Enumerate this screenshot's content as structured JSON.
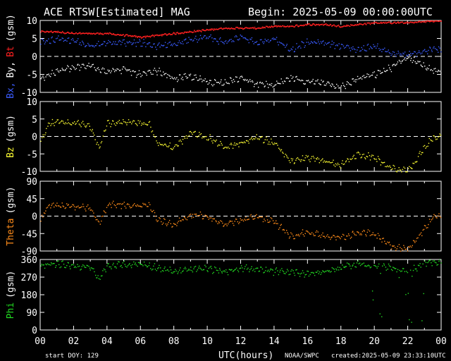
{
  "header": {
    "title": "ACE RTSW[Estimated] MAG",
    "begin": "Begin: 2025-05-09 00:00:00UTC"
  },
  "footer": {
    "start_doy": "start DOY: 129",
    "xlabel": "UTC(hours)",
    "source": "NOAA/SWPC",
    "created": "created:2025-05-09 23:33:10UTC"
  },
  "colors": {
    "bt": "#ff2020",
    "bx": "#ffffff",
    "by": "#3a5cff",
    "bz": "#ffff33",
    "theta": "#ff8c1a",
    "phi": "#22dd22"
  },
  "chart_data": [
    {
      "type": "scatter",
      "panel": "field",
      "ylabel_parts": [
        "Bx,",
        "By,",
        "Bt",
        "(gsm)"
      ],
      "ylim": [
        -10,
        10
      ],
      "yticks": [
        "10",
        "5",
        "0",
        "-5",
        "-10"
      ],
      "zero_line": true,
      "x": [
        0,
        1,
        2,
        3,
        4,
        5,
        6,
        7,
        8,
        9,
        10,
        11,
        12,
        13,
        14,
        15,
        16,
        17,
        18,
        19,
        20,
        21,
        22,
        23.5
      ],
      "series": [
        {
          "name": "Bt",
          "color_key": "bt",
          "values": [
            7,
            7,
            6.5,
            6.5,
            6.5,
            6,
            5.5,
            6,
            6.5,
            7,
            7.5,
            8,
            8,
            8,
            8.5,
            8.5,
            9,
            9,
            8.5,
            9,
            9.5,
            9.5,
            9.5,
            10
          ]
        },
        {
          "name": "By",
          "color_key": "by",
          "values": [
            4,
            5,
            4.5,
            3,
            4,
            4,
            4,
            3,
            3.5,
            5,
            5.5,
            4,
            5.5,
            4,
            5,
            2,
            4,
            4,
            3,
            2,
            3,
            1,
            0.5,
            2
          ]
        },
        {
          "name": "Bx",
          "color_key": "bx",
          "values": [
            -6,
            -4,
            -3,
            -2.5,
            -4,
            -3.5,
            -5,
            -4,
            -6,
            -5.5,
            -7,
            -7,
            -6,
            -7.5,
            -8,
            -6,
            -7,
            -7,
            -8.5,
            -6,
            -5,
            -3,
            0,
            -4
          ]
        }
      ]
    },
    {
      "type": "scatter",
      "panel": "bz",
      "ylabel_parts": [
        "Bz",
        "(gsm)"
      ],
      "ylim": [
        -10,
        10
      ],
      "yticks": [
        "10",
        "5",
        "0",
        "-5",
        "-10"
      ],
      "zero_line": true,
      "x": [
        0,
        0.5,
        1,
        2,
        3,
        3.5,
        4,
        5,
        6,
        6.5,
        7,
        8,
        9,
        10,
        11,
        12,
        13,
        14,
        15,
        16,
        17,
        18,
        19,
        20,
        21,
        22,
        23,
        23.5
      ],
      "series": [
        {
          "name": "Bz",
          "color_key": "bz",
          "values": [
            -2,
            4,
            4,
            4,
            3,
            -3,
            4,
            4,
            4,
            4,
            -2,
            -3,
            1,
            0,
            -3,
            -2,
            0,
            -2,
            -7,
            -6,
            -7,
            -8,
            -5,
            -6,
            -9,
            -10,
            -3,
            0
          ]
        }
      ]
    },
    {
      "type": "scatter",
      "panel": "theta",
      "ylabel_parts": [
        "Theta",
        "(gsm)"
      ],
      "ylim": [
        -90,
        90
      ],
      "yticks": [
        "90",
        "45",
        "0",
        "-45",
        "-90"
      ],
      "zero_line": true,
      "x": [
        0,
        0.5,
        1,
        2,
        3,
        3.5,
        4,
        5,
        6,
        6.5,
        7,
        8,
        9,
        10,
        11,
        12,
        13,
        14,
        15,
        16,
        17,
        18,
        19,
        20,
        21,
        22,
        23,
        23.5
      ],
      "series": [
        {
          "name": "Theta",
          "color_key": "theta",
          "values": [
            -10,
            30,
            30,
            25,
            20,
            -20,
            30,
            30,
            28,
            30,
            -10,
            -20,
            5,
            0,
            -20,
            -10,
            0,
            -15,
            -50,
            -40,
            -50,
            -55,
            -40,
            -45,
            -75,
            -85,
            -30,
            0
          ]
        }
      ]
    },
    {
      "type": "scatter",
      "panel": "phi",
      "ylabel_parts": [
        "Phi",
        "(gsm)"
      ],
      "ylim": [
        0,
        360
      ],
      "yticks": [
        "360",
        "270",
        "180",
        "90",
        "0"
      ],
      "zero_line": false,
      "x": [
        0,
        1,
        2,
        3,
        3.5,
        4,
        5,
        6,
        7,
        8,
        9,
        10,
        11,
        12,
        13,
        14,
        15,
        16,
        17,
        18,
        19,
        20,
        21,
        22,
        23,
        23.5
      ],
      "series": [
        {
          "name": "Phi",
          "color_key": "phi",
          "values": [
            330,
            340,
            330,
            320,
            260,
            330,
            335,
            340,
            320,
            300,
            310,
            315,
            300,
            320,
            310,
            300,
            300,
            290,
            300,
            320,
            340,
            330,
            320,
            300,
            340,
            350
          ]
        }
      ]
    }
  ],
  "x_axis": {
    "xlim": [
      0,
      24
    ],
    "ticks": [
      "00",
      "02",
      "04",
      "06",
      "08",
      "10",
      "12",
      "14",
      "16",
      "18",
      "20",
      "22",
      "00"
    ]
  }
}
